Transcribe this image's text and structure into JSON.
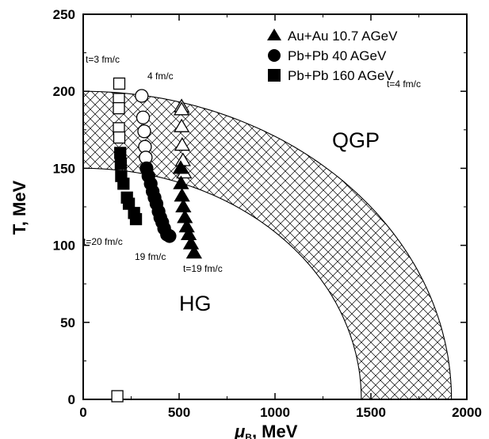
{
  "chart_data": {
    "type": "scatter",
    "title": "",
    "xlabel_main": "μ",
    "xlabel_sub": "B",
    "xlabel_rest": ", MeV",
    "ylabel": "T, MeV",
    "xlim": [
      0,
      2000
    ],
    "ylim": [
      0,
      250
    ],
    "x_ticks": [
      0,
      500,
      1000,
      1500,
      2000
    ],
    "y_ticks": [
      0,
      50,
      100,
      150,
      200,
      250
    ],
    "x_tick_labels": [
      "0",
      "500",
      "1000",
      "1500",
      "2000"
    ],
    "y_tick_labels": [
      "0",
      "50",
      "100",
      "150",
      "200",
      "250"
    ],
    "legend_position": "top-right",
    "series": [
      {
        "name": "Au+Au 10.7 AGeV",
        "marker": "triangle",
        "open_points": [
          [
            513,
            190
          ],
          [
            513,
            188
          ],
          [
            513,
            177
          ],
          [
            516,
            165
          ],
          [
            520,
            155
          ],
          [
            526,
            147
          ]
        ],
        "filled_points": [
          [
            508,
            150
          ],
          [
            510,
            140
          ],
          [
            515,
            132
          ],
          [
            522,
            125
          ],
          [
            530,
            118
          ],
          [
            540,
            112
          ],
          [
            550,
            107
          ],
          [
            562,
            101
          ],
          [
            578,
            95
          ]
        ]
      },
      {
        "name": "Pb+Pb 40 AGeV",
        "marker": "circle",
        "open_points": [
          [
            305,
            197
          ],
          [
            312,
            183
          ],
          [
            318,
            174
          ],
          [
            322,
            164
          ],
          [
            326,
            157
          ]
        ],
        "filled_points": [
          [
            330,
            150
          ],
          [
            340,
            145
          ],
          [
            352,
            140
          ],
          [
            362,
            135
          ],
          [
            372,
            131
          ],
          [
            382,
            127
          ],
          [
            393,
            122
          ],
          [
            402,
            118
          ],
          [
            412,
            115
          ],
          [
            422,
            111
          ],
          [
            437,
            107
          ],
          [
            450,
            106
          ]
        ]
      },
      {
        "name": "Pb+Pb 160 AGeV",
        "marker": "square",
        "open_points": [
          [
            188,
            205
          ],
          [
            186,
            195
          ],
          [
            186,
            189
          ],
          [
            186,
            176
          ],
          [
            188,
            170
          ]
        ],
        "filled_points": [
          [
            193,
            160
          ],
          [
            196,
            153
          ],
          [
            198,
            145
          ],
          [
            210,
            140
          ],
          [
            228,
            131
          ],
          [
            238,
            127
          ],
          [
            265,
            121
          ],
          [
            275,
            117
          ]
        ],
        "baseline_open_points": [
          [
            178,
            0
          ]
        ]
      }
    ],
    "band": {
      "inner_T0": 150,
      "inner_muB0": 1450,
      "outer_T0": 200,
      "outer_muB0": 1920,
      "pattern": "crosshatch"
    },
    "annotations": [
      {
        "id": "t3",
        "text": "t=3 fm/c"
      },
      {
        "id": "t4a",
        "text": "4 fm/c"
      },
      {
        "id": "t4b",
        "text": "t=4 fm/c"
      },
      {
        "id": "t20",
        "text": "t=20 fm/c"
      },
      {
        "id": "t19a",
        "text": "19 fm/c"
      },
      {
        "id": "t19b",
        "text": "t=19 fm/c"
      }
    ],
    "region_labels": {
      "qgp": "QGP",
      "hg": "HG"
    }
  }
}
